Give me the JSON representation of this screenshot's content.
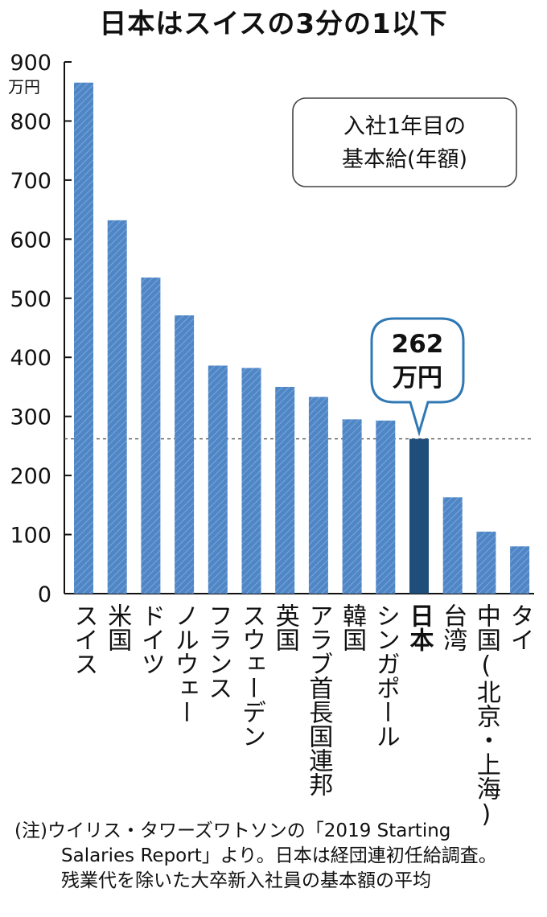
{
  "title": "日本はスイスの3分の1以下",
  "legend": {
    "line1": "入社1年目の",
    "line2": "基本給(年額)"
  },
  "callout": {
    "value": "262",
    "unit": "万円"
  },
  "note": {
    "line1": "(注)ウイリス・タワーズワトソンの「2019 Starting",
    "line2": "Salaries Report」より。日本は経団連初任給調査。",
    "line3": "残業代を除いた大卒新入社員の基本額の平均"
  },
  "colors": {
    "bar": "#4f86c6",
    "highlight": "#1f4e7a",
    "callout_border": "#2f78b4"
  },
  "chart_data": {
    "type": "bar",
    "title": "日本はスイスの3分の1以下",
    "ylabel": "万円",
    "ylim": [
      0,
      900
    ],
    "yticks": [
      0,
      100,
      200,
      300,
      400,
      500,
      600,
      700,
      800,
      900
    ],
    "categories": [
      "スイス",
      "米国",
      "ドイツ",
      "ノルウェー",
      "フランス",
      "スウェーデン",
      "英国",
      "アラブ首長国連邦",
      "韓国",
      "シンガポール",
      "日本",
      "台湾",
      "中国(北京・上海)",
      "タイ"
    ],
    "values": [
      865,
      632,
      535,
      471,
      386,
      382,
      350,
      333,
      295,
      293,
      262,
      163,
      105,
      80
    ],
    "highlight_category": "日本",
    "reference_line": 262,
    "grid": false
  }
}
